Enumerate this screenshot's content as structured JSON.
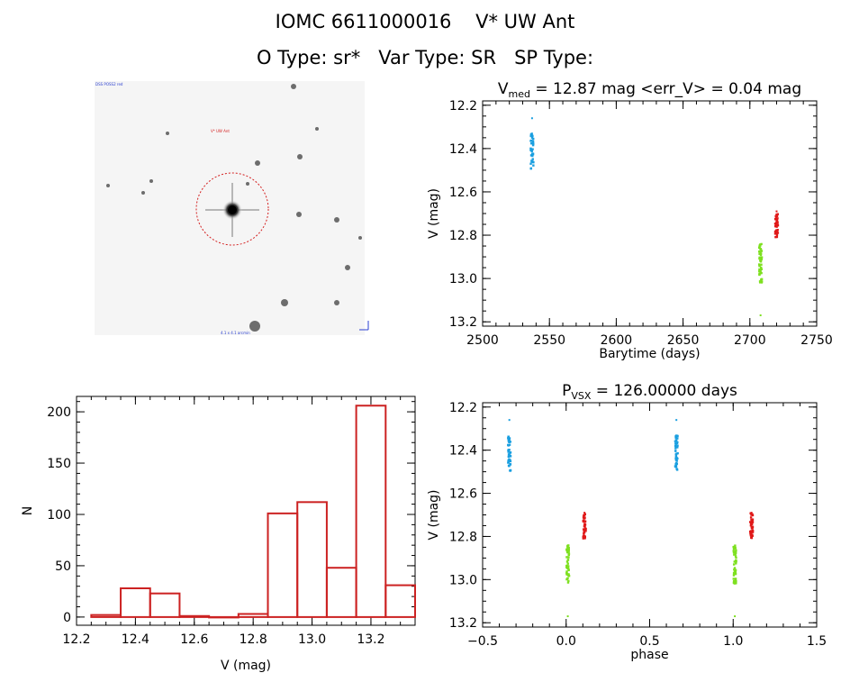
{
  "header": {
    "line1": "IOMC 6611000016    V* UW Ant",
    "line2": "O Type: sr*   Var Type: SR   SP Type:"
  },
  "colors": {
    "axis": "#000000",
    "hist": "#cc2222",
    "blue": "#1a9fe0",
    "green": "#7ee020",
    "red": "#e01818",
    "circle": "#d42020"
  },
  "sky_image": {
    "annotations": {
      "top_left": "DSS POSS2 red",
      "center": "V* UW Ant",
      "bottom_center": "4.1 x 4.1 arcmin"
    }
  },
  "chart_data": [
    {
      "type": "histogram",
      "title": "",
      "xlabel": "V (mag)",
      "ylabel": "N",
      "xlim": [
        12.2,
        13.35
      ],
      "ylim": [
        -8,
        215
      ],
      "xticks": [
        "12.2",
        "12.4",
        "12.6",
        "12.8",
        "13.0",
        "13.2"
      ],
      "yticks": [
        "0",
        "50",
        "100",
        "150",
        "200"
      ],
      "bins": [
        {
          "x0": 12.25,
          "x1": 12.35,
          "n": 2
        },
        {
          "x0": 12.35,
          "x1": 12.45,
          "n": 28
        },
        {
          "x0": 12.45,
          "x1": 12.55,
          "n": 23
        },
        {
          "x0": 12.55,
          "x1": 12.65,
          "n": 1
        },
        {
          "x0": 12.65,
          "x1": 12.75,
          "n": 0
        },
        {
          "x0": 12.75,
          "x1": 12.85,
          "n": 3
        },
        {
          "x0": 12.85,
          "x1": 12.95,
          "n": 101
        },
        {
          "x0": 12.95,
          "x1": 13.05,
          "n": 112
        },
        {
          "x0": 13.05,
          "x1": 13.15,
          "n": 48
        },
        {
          "x0": 13.15,
          "x1": 13.25,
          "n": 206
        },
        {
          "x0": 13.25,
          "x1": 13.35,
          "n": 31
        }
      ]
    },
    {
      "type": "scatter",
      "title_main": "V",
      "title_sub": "med",
      "title_rest": " = 12.87 mag <err_V> = 0.04 mag",
      "xlabel": "Barytime (days)",
      "ylabel": "V (mag)",
      "xlim": [
        2500,
        2750
      ],
      "ylim": [
        13.22,
        12.18
      ],
      "xticks": [
        "2500",
        "2550",
        "2600",
        "2650",
        "2700",
        "2750"
      ],
      "yticks": [
        "12.2",
        "12.4",
        "12.6",
        "12.8",
        "13.0",
        "13.2"
      ],
      "series": [
        {
          "color": "blue",
          "x": 2537,
          "ymin": 12.33,
          "ymax": 12.5,
          "ytop": 12.26,
          "n": 40
        },
        {
          "color": "green",
          "x": 2708,
          "ymin": 12.84,
          "ymax": 13.02,
          "ytop": 13.17,
          "n": 50
        },
        {
          "color": "red",
          "x": 2720,
          "ymin": 12.69,
          "ymax": 12.81,
          "ytop": 12.69,
          "n": 40
        }
      ]
    },
    {
      "type": "scatter",
      "title_main": "P",
      "title_sub": "VSX",
      "title_rest": " = 126.00000 days",
      "xlabel": "phase",
      "ylabel": "V (mag)",
      "xlim": [
        -0.5,
        1.5
      ],
      "ylim": [
        13.22,
        12.18
      ],
      "xticks": [
        "−0.5",
        "0.0",
        "0.5",
        "1.0",
        "1.5"
      ],
      "yticks": [
        "12.2",
        "12.4",
        "12.6",
        "12.8",
        "13.0",
        "13.2"
      ],
      "series": [
        {
          "color": "blue",
          "x": -0.34,
          "ymin": 12.33,
          "ymax": 12.5,
          "ytop": 12.26,
          "n": 40
        },
        {
          "color": "blue",
          "x": 0.66,
          "ymin": 12.33,
          "ymax": 12.5,
          "ytop": 12.26,
          "n": 40
        },
        {
          "color": "green",
          "x": 0.01,
          "ymin": 12.84,
          "ymax": 13.02,
          "ytop": 13.17,
          "n": 50
        },
        {
          "color": "green",
          "x": 1.01,
          "ymin": 12.84,
          "ymax": 13.02,
          "ytop": 13.17,
          "n": 50
        },
        {
          "color": "red",
          "x": 0.11,
          "ymin": 12.69,
          "ymax": 12.81,
          "ytop": 12.69,
          "n": 40
        },
        {
          "color": "red",
          "x": 1.11,
          "ymin": 12.69,
          "ymax": 12.81,
          "ytop": 12.69,
          "n": 40
        }
      ]
    }
  ]
}
